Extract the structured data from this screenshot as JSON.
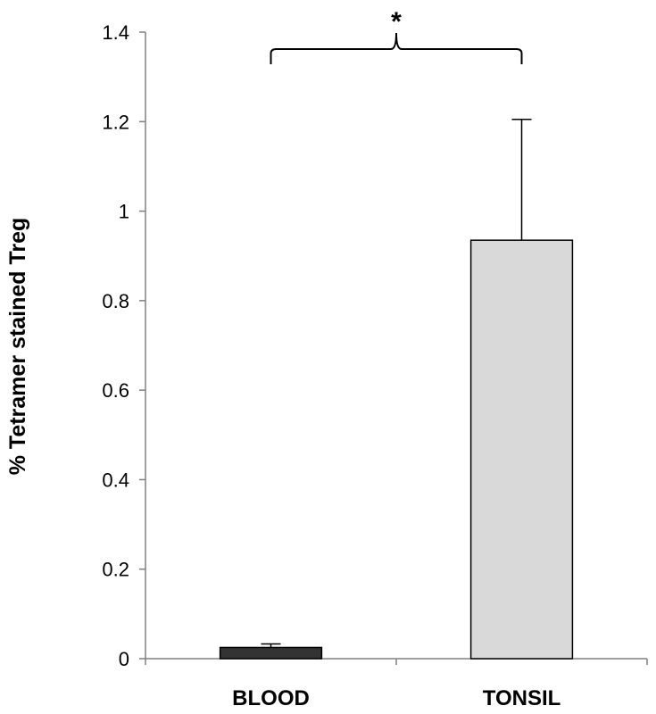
{
  "chart_data": {
    "type": "bar",
    "categories": [
      "BLOOD",
      "TONSIL"
    ],
    "values": [
      0.025,
      0.935
    ],
    "errors": [
      0.008,
      0.27
    ],
    "bar_colors": [
      "#333333",
      "#d9d9d9"
    ],
    "ylabel": "% Tetramer stained Treg",
    "xlabel": "",
    "ylim": [
      0,
      1.4
    ],
    "yticks": [
      0,
      0.2,
      0.4,
      0.6,
      0.8,
      1,
      1.2,
      1.4
    ],
    "ytick_labels": [
      "0",
      "0.2",
      "0.4",
      "0.6",
      "0.8",
      "1",
      "1.2",
      "1.4"
    ],
    "grid": false,
    "annotation": {
      "text": "*",
      "between": [
        "BLOOD",
        "TONSIL"
      ]
    }
  }
}
